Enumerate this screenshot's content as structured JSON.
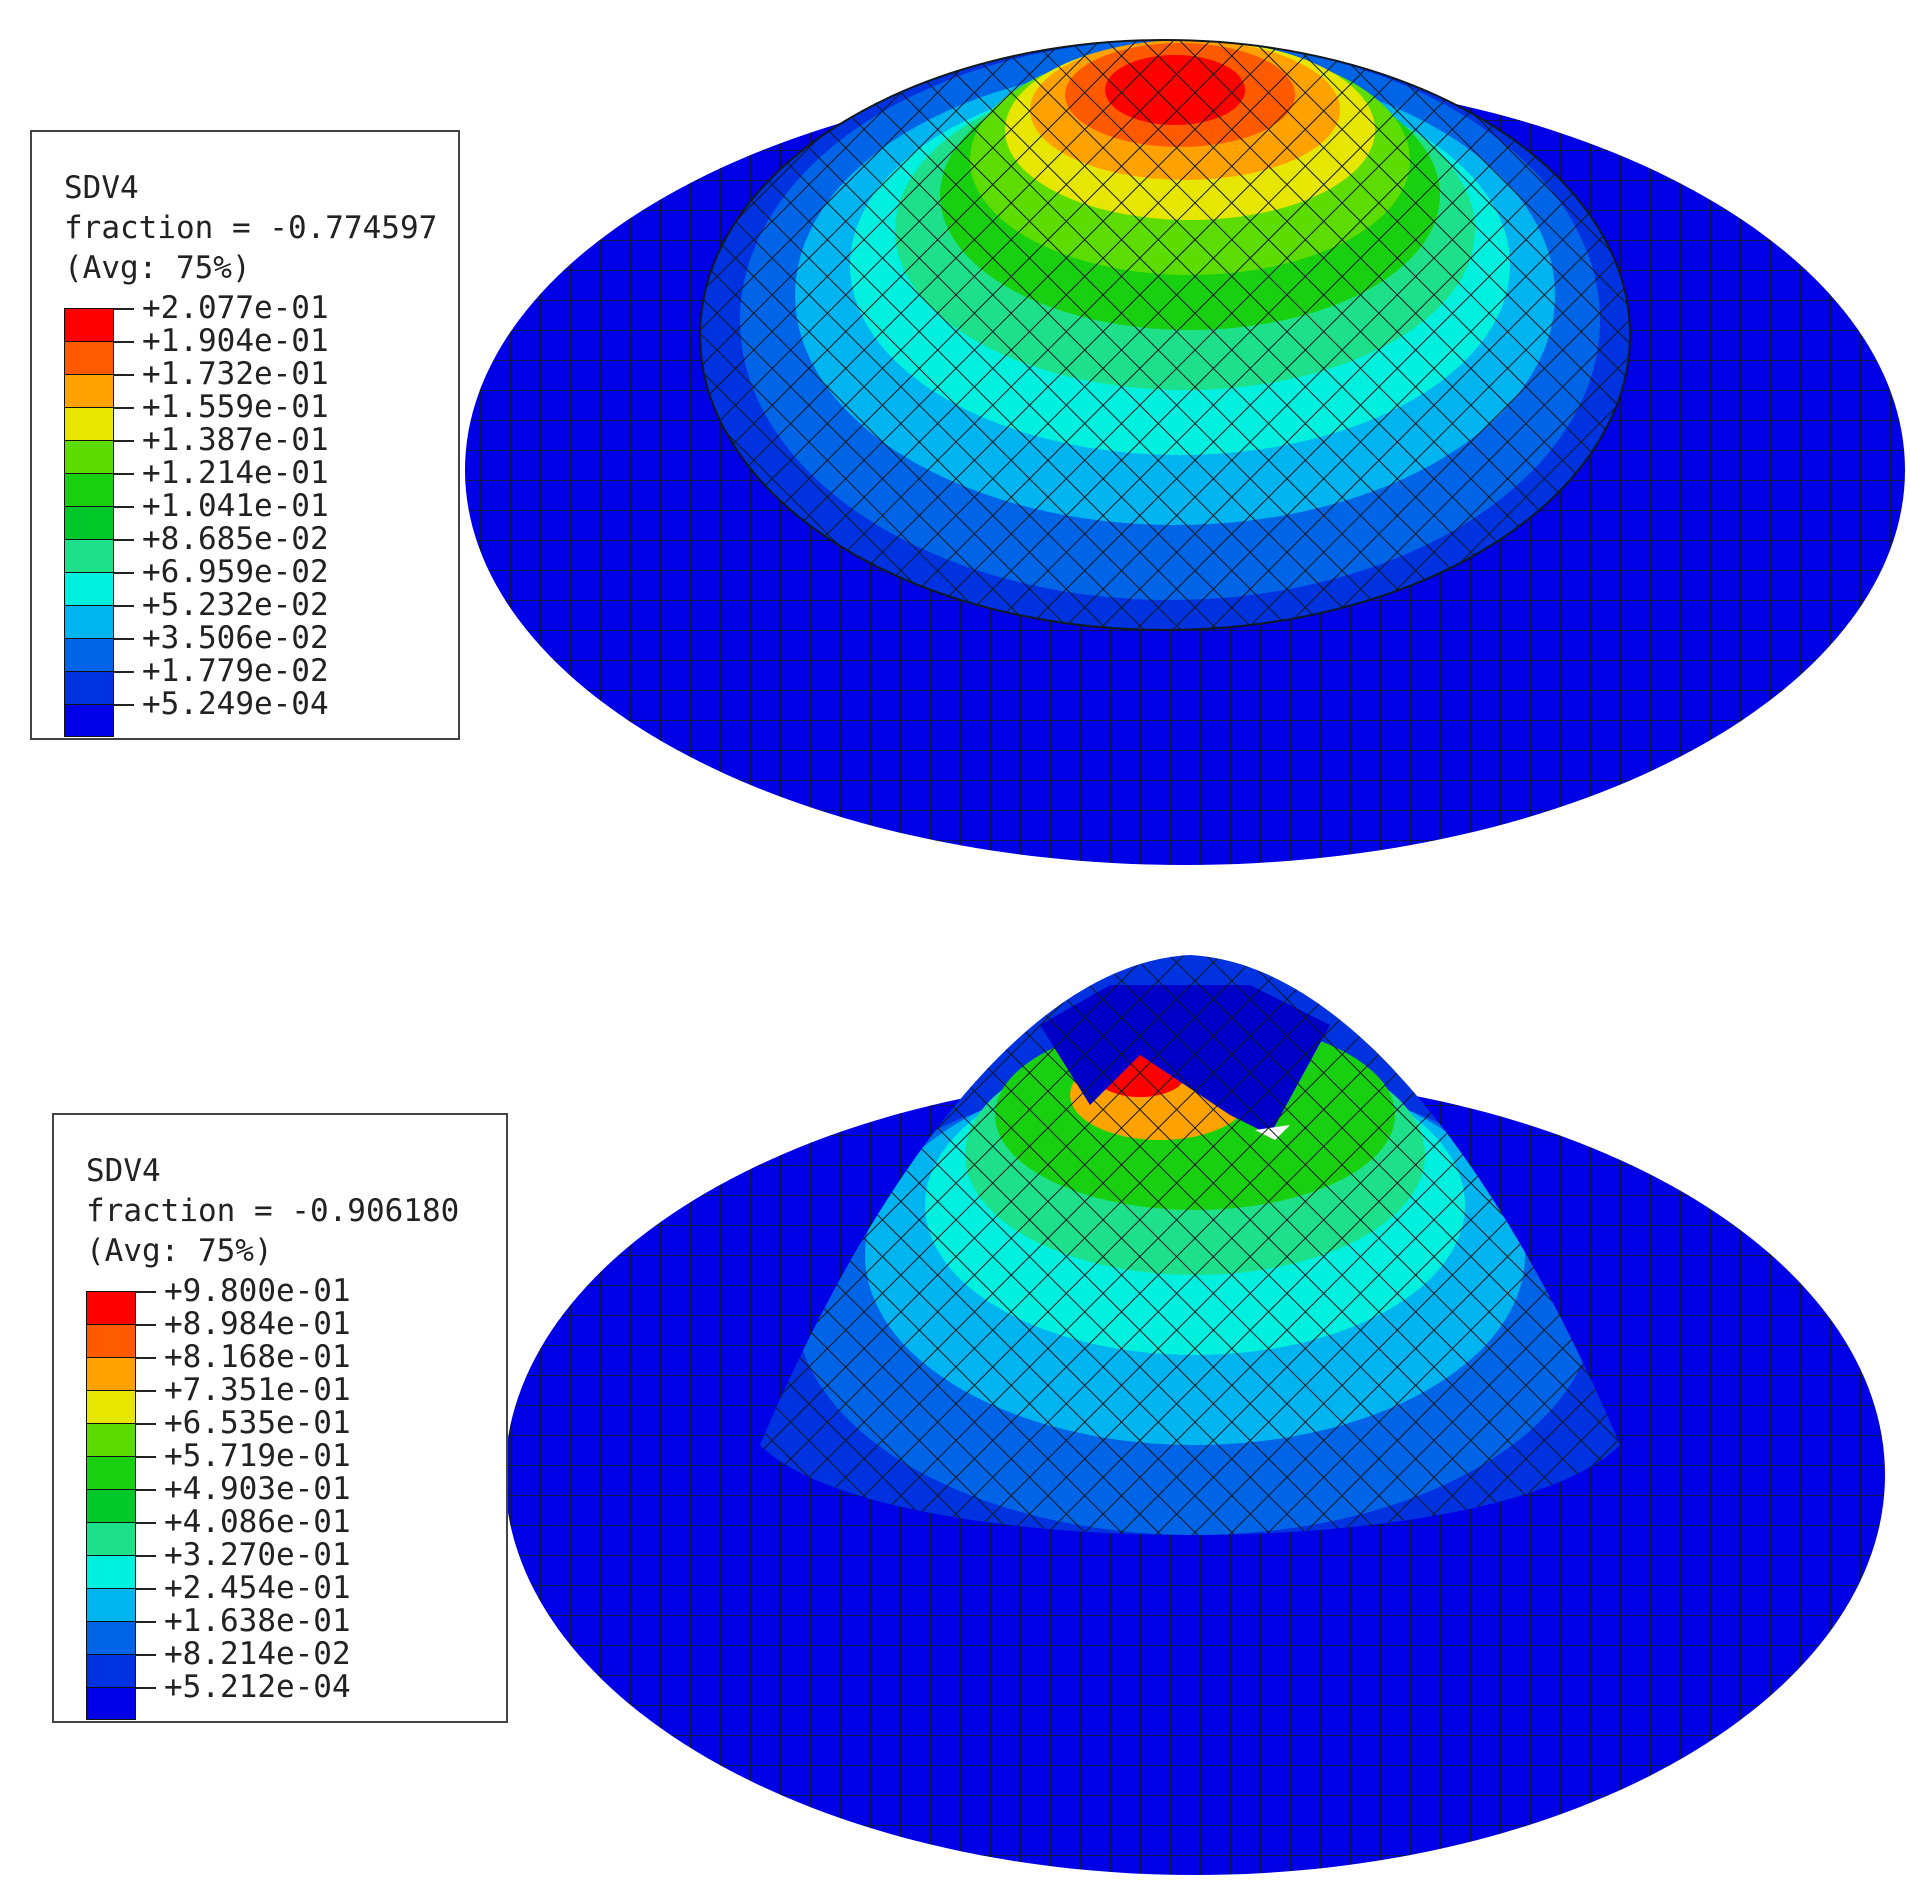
{
  "figures": [
    {
      "legend": {
        "variable": "SDV4",
        "fraction": "fraction = -0.774597",
        "averaging": "(Avg: 75%)",
        "values": [
          "+2.077e-01",
          "+1.904e-01",
          "+1.732e-01",
          "+1.559e-01",
          "+1.387e-01",
          "+1.214e-01",
          "+1.041e-01",
          "+8.685e-02",
          "+6.959e-02",
          "+5.232e-02",
          "+3.506e-02",
          "+1.779e-02",
          "+5.249e-04"
        ]
      }
    },
    {
      "legend": {
        "variable": "SDV4",
        "fraction": "fraction = -0.906180",
        "averaging": "(Avg: 75%)",
        "values": [
          "+9.800e-01",
          "+8.984e-01",
          "+8.168e-01",
          "+7.351e-01",
          "+6.535e-01",
          "+5.719e-01",
          "+4.903e-01",
          "+4.086e-01",
          "+3.270e-01",
          "+2.454e-01",
          "+1.638e-01",
          "+8.214e-02",
          "+5.212e-04"
        ]
      }
    }
  ],
  "colormap": [
    "#ff0000",
    "#ff5a00",
    "#ffa200",
    "#e6e600",
    "#5cdc00",
    "#18d010",
    "#00c82a",
    "#1ee08a",
    "#00f0e0",
    "#00b4f0",
    "#0064e6",
    "#0032e0",
    "#0000e6"
  ],
  "mesh_color": "#101820"
}
